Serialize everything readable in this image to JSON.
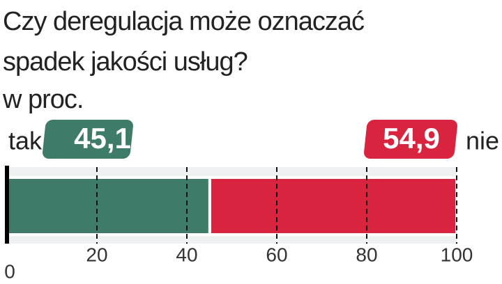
{
  "chart_data": {
    "type": "stacked-bar",
    "title": "Czy deregulacja może oznaczać spadek jakości usług?",
    "subtitle": "w proc.",
    "series": [
      {
        "name": "tak",
        "color": "#3e7b69",
        "values": [
          45.1
        ],
        "value_labels": [
          "45,1"
        ]
      },
      {
        "name": "nie",
        "color": "#d8243f",
        "values": [
          54.9
        ],
        "value_labels": [
          "54,9"
        ]
      }
    ],
    "xlim": [
      0,
      100
    ],
    "xticks": [
      0,
      20,
      40,
      60,
      80,
      100
    ],
    "grid": true
  }
}
